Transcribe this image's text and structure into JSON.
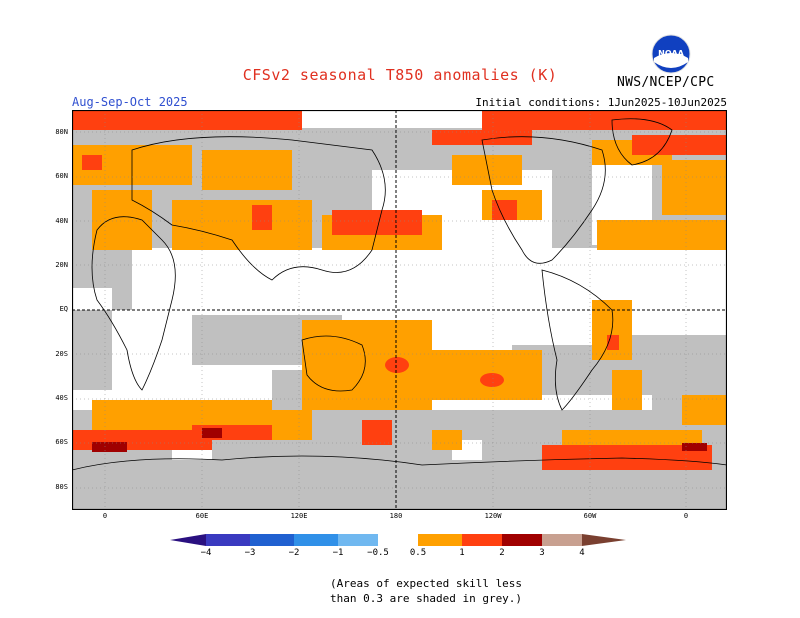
{
  "header": {
    "title": "CFSv2 seasonal T850 anomalies (K)",
    "season": "Aug-Sep-Oct 2025",
    "initial_conditions": "Initial conditions: 1Jun2025-10Jun2025",
    "agency": "NWS/NCEP/CPC",
    "logo_text": "NOAA"
  },
  "map": {
    "lat_labels": [
      "80N",
      "60N",
      "40N",
      "20N",
      "EQ",
      "20S",
      "40S",
      "60S",
      "80S"
    ],
    "lon_labels": [
      "0",
      "60E",
      "120E",
      "180",
      "120W",
      "60W",
      "0"
    ],
    "anomaly_regions": [
      {
        "name": "arctic-ocean-belt",
        "class": "1-2"
      },
      {
        "name": "north-pacific",
        "class": "1-2"
      },
      {
        "name": "eurasia-interior",
        "class": "0.5-1"
      },
      {
        "name": "south-pacific-convergence",
        "class": "0.5-1"
      },
      {
        "name": "southern-ocean-belt",
        "class": "1-2"
      },
      {
        "name": "tropical-east-pacific",
        "class": "neutral"
      }
    ]
  },
  "colorbar": {
    "labels": [
      "−4",
      "−3",
      "−2",
      "−1",
      "−0.5",
      "0.5",
      "1",
      "2",
      "3",
      "4"
    ],
    "colors": {
      "lt_-4": "#2a1080",
      "-4_-3": "#3a3ac0",
      "-3_-2": "#2060d0",
      "-2_-1": "#3090e8",
      "-1_-0.5": "#70b8f0",
      "-0.5_0.5": "#ffffff",
      "0.5_1": "#ffa000",
      "1_2": "#ff4010",
      "2_3": "#a00000",
      "3_4": "#c8a090",
      "gt_4": "#7a4030"
    },
    "grey_color": "#c0c0c0"
  },
  "footnote": [
    "(Areas of expected skill less",
    "than 0.3 are shaded in grey.)"
  ]
}
